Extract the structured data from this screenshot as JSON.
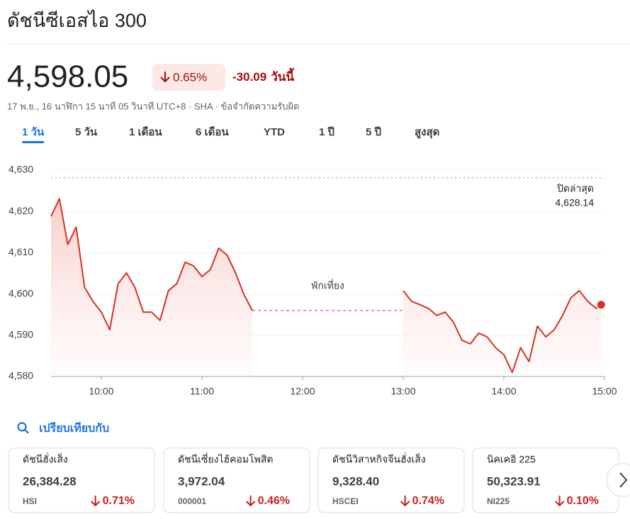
{
  "header": {
    "title": "ดัชนีซีเอสไอ 300",
    "price": "4,598.05",
    "change_percent": "0.65%",
    "change": "-30.09",
    "period": "วันนี้",
    "timestamp": "17 พ.ย., 16 นาฬิกา 15 นาที 05 วินาที UTC+8 · SHA · ข้อจำกัดความรับผิด"
  },
  "tabs": [
    "1 วัน",
    "5 วัน",
    "1 เดือน",
    "6 เดือน",
    "YTD",
    "1 ปี",
    "5 ปี",
    "สูงสุด"
  ],
  "selected_tab": 0,
  "chart_data": {
    "type": "line",
    "color": "#d93025",
    "grid": true,
    "x": [
      "09:30",
      "09:35",
      "09:40",
      "09:45",
      "09:50",
      "09:55",
      "10:00",
      "10:05",
      "10:10",
      "10:15",
      "10:20",
      "10:25",
      "10:30",
      "10:35",
      "10:40",
      "10:45",
      "10:50",
      "10:55",
      "11:00",
      "11:05",
      "11:10",
      "11:15",
      "11:20",
      "11:25",
      "11:30",
      "12:15",
      "13:00",
      "13:05",
      "13:10",
      "13:15",
      "13:20",
      "13:25",
      "13:30",
      "13:35",
      "13:40",
      "13:45",
      "13:50",
      "13:55",
      "14:00",
      "14:05",
      "14:10",
      "14:15",
      "14:20",
      "14:25",
      "14:30",
      "14:35",
      "14:40",
      "14:45",
      "14:50",
      "14:55",
      "14:58"
    ],
    "values": [
      4618.8,
      4623.1,
      4612,
      4616.2,
      4601.6,
      4598.2,
      4595.6,
      4591.3,
      4602.5,
      4605.1,
      4601.6,
      4595.6,
      4595.6,
      4593.6,
      4600.8,
      4602.5,
      4607.7,
      4606.8,
      4604.2,
      4605.9,
      4611.1,
      4609.4,
      4605.1,
      4599.9,
      4596,
      null,
      4600.8,
      4598.2,
      4597.4,
      4596.5,
      4594.8,
      4595.6,
      4593.1,
      4588.8,
      4587.9,
      4590.5,
      4589.6,
      4587,
      4585.3,
      4581,
      4587,
      4583.6,
      4592.2,
      4589.6,
      4591.3,
      4594.8,
      4599.1,
      4600.8,
      4598.2,
      4596.5,
      4597.4
    ],
    "xlim": [
      "09:30",
      "15:00"
    ],
    "xticks": [
      "10:00",
      "11:00",
      "12:00",
      "13:00",
      "14:00",
      "15:00"
    ],
    "ylim": [
      4580,
      4630
    ],
    "yticks": [
      {
        "value": 4580,
        "label": "4,580"
      },
      {
        "value": 4590,
        "label": "4,590"
      },
      {
        "value": 4600,
        "label": "4,600"
      },
      {
        "value": 4610,
        "label": "4,610"
      },
      {
        "value": 4620,
        "label": "4,620"
      },
      {
        "value": 4630,
        "label": "4,630"
      }
    ],
    "reference_line": {
      "name": "ปิดล่าสุด",
      "value": 4628.14,
      "value_label": "4,628.14"
    },
    "annotation": "พักเที่ยง"
  },
  "compare": {
    "title": "เปรียบเทียบกับ",
    "cards": [
      {
        "name": "ดัชนีฮั่งเส็ง",
        "price": "26,384.28",
        "ticker": "HSI",
        "change": "0.71%"
      },
      {
        "name": "ดัชนีเซี่ยงไฮ้คอมโพสิต",
        "price": "3,972.04",
        "ticker": "000001",
        "change": "0.46%"
      },
      {
        "name": "ดัชนีวิสาหกิจจีนฮั่งเส็ง",
        "price": "9,328.40",
        "ticker": "HSCEI",
        "change": "0.74%"
      },
      {
        "name": "นิคเคอิ 225",
        "price": "50,323.91",
        "ticker": "NI225",
        "change": "0.10%"
      }
    ]
  }
}
